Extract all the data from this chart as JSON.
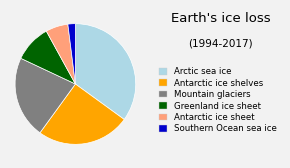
{
  "title": "Earth's ice loss",
  "subtitle": "(1994-2017)",
  "labels": [
    "Arctic sea ice",
    "Antarctic ice shelves",
    "Mountain glaciers",
    "Greenland ice sheet",
    "Antarctic ice sheet",
    "Southern Ocean sea ice"
  ],
  "values": [
    35,
    25,
    22,
    10,
    6,
    2
  ],
  "colors": [
    "#add8e6",
    "#ffa500",
    "#808080",
    "#006400",
    "#ffa07a",
    "#0000cd"
  ],
  "background_color": "#f2f2f2",
  "title_fontsize": 9.5,
  "subtitle_fontsize": 7.5,
  "legend_fontsize": 6.2
}
